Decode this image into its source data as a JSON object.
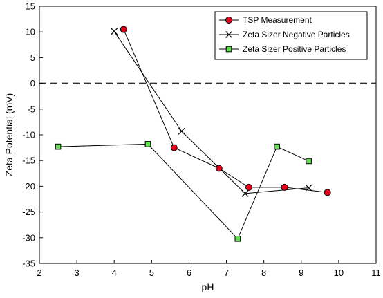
{
  "chart_data": {
    "type": "line",
    "xlabel": "pH",
    "ylabel": "Zeta Potential (mV)",
    "xlim": [
      2,
      11
    ],
    "ylim": [
      -35,
      15
    ],
    "xticks": [
      2,
      3,
      4,
      5,
      6,
      7,
      8,
      9,
      10,
      11
    ],
    "yticks": [
      -35,
      -30,
      -25,
      -20,
      -15,
      -10,
      -5,
      0,
      5,
      10,
      15
    ],
    "reference_line": {
      "y": 0,
      "style": "dashed"
    },
    "grid": false,
    "legend_position": "top-right",
    "series": [
      {
        "name": "TSP Measurement",
        "marker": "circle",
        "marker_color": "#e8001c",
        "line_color": "#000000",
        "x": [
          4.25,
          5.6,
          6.8,
          7.6,
          8.55,
          9.7
        ],
        "y": [
          10.5,
          -12.5,
          -16.5,
          -20.2,
          -20.2,
          -21.2
        ]
      },
      {
        "name": "Zeta Sizer Negative Particles",
        "marker": "x",
        "marker_color": "#000000",
        "line_color": "#000000",
        "x": [
          4.0,
          5.8,
          7.5,
          9.2
        ],
        "y": [
          10.1,
          -9.3,
          -21.4,
          -20.3
        ]
      },
      {
        "name": "Zeta Sizer Positive Particles",
        "marker": "square",
        "marker_color": "#66dd55",
        "line_color": "#000000",
        "x": [
          2.5,
          4.9,
          7.3,
          8.35,
          9.2
        ],
        "y": [
          -12.3,
          -11.8,
          -30.2,
          -12.3,
          -15.1
        ]
      }
    ]
  }
}
